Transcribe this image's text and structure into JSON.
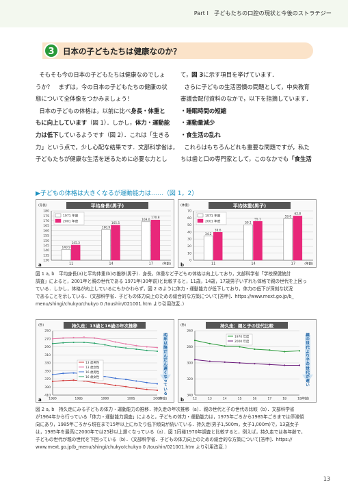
{
  "header": {
    "running_title": "Part Ⅰ　子どもたちの口腔の現状と今後のストラテジー"
  },
  "section": {
    "number": "3",
    "title": "日本の子どもたちは健康なのか？"
  },
  "body_left": {
    "lines": [
      [
        "そもそも今の日本の子どもたちは健康なのでしょ",
        "",
        ""
      ],
      [
        "うか？　まずは，今の日本の子どもたちの健康の状",
        "",
        ""
      ],
      [
        "態について全体像をつかみましょう！",
        "",
        ""
      ],
      [
        "日本の子どもの体格は，以前に比べ",
        "身長・体重と",
        ""
      ],
      [
        "",
        "もに向上しています",
        "（図 1）．しかし，"
      ],
      [
        "",
        "力は低下",
        "しているようです（図 2）．これは「生きる"
      ],
      [
        "力」という点で，少し心配な結果です．文部科学省は，",
        "",
        ""
      ],
      [
        "子どもたちが健康な生活を送るために必要な力とし",
        "",
        ""
      ]
    ],
    "bold_inline": "体力・運動能"
  },
  "body_right": {
    "line1a": "て，",
    "line1b": "図 3",
    "line1c": "に示す項目を挙げています．",
    "line2": "さらに子どもの生活習慣の問題として，中央教育",
    "line3": "審議会配付資料のなかで，以下を指摘しています．",
    "bullets": [
      "・睡眠時間の短縮",
      "・運動量減少",
      "・食生活の乱れ"
    ],
    "line7": "これらはもちろんどれも重要な問題ですが，私た",
    "line8a": "ちは歯と口の専門家として，このなかでも",
    "line8b": "「食生活"
  },
  "fig1": {
    "heading": "▶子どもの体格は大きくなるが運動能力は……（図 1，2）",
    "caption_lines": [
      "図 1 a, b　平均身長(a)と平均体重(b)の推移(男子)．身長，体重など子どもの体格は向上しており，文部科学省「学校保健統計",
      "調査」によると，2001年と親の世代である 1971年(30年前)と比較すると，11歳，14歳，17歳男子いずれも体格で親の世代を上回っ",
      "ている．しかし，体格が向上しているにもかかわらず，図 2 のように体力・運動能力が低下しており，体力の低下が深刻な状況",
      "であることを示している．（文部科学省．子どもの体力向上のための総合的な方策について[答申]．https://www.mext.go.jp/b_",
      "menu/shingi/chukyo/chukyo 0 /toushin/021001.htm より引用改変．）"
    ]
  },
  "fig2": {
    "caption_lines": [
      "図 2 a, b　持久走にみる子どもの体力・運動能力の推移．持久走の年次推移（a）．親の世代と子の世代の比較（b）．文部科学省",
      "が1964年から行っている「体力・運動能力調査」によると，子どもの体力・運動能力は，1975年ごろから1985年ごろまでは停滞傾",
      "向にあり，1985年ごろから現在まで15年以上にわたり低下傾向が続いている．持久走(男子1,500m，女子1,000m)で，13歳女子",
      "は，1985年を最高に2000年では25秒以上遅くなっている（a）．図 1同様1970年調査と比較すると，例えば，持久走では各年齢で，",
      "子どもの世代が親の世代を下回っている（b）．（文部科学省．子どもの体力向上のための総合的な方策について[答申]．https://",
      "www.mext.go.jp/b_menu/shingi/chukyo/chukyo 0 /toushin/021001.htm より引用改変．）"
    ]
  },
  "page_number": "13",
  "colors": {
    "bar_1971": "#ffffff",
    "bar_2001": "#e8277a",
    "accent_green": "#2a9a3a",
    "title_bar": "#555555",
    "line_1970": "#2a9a3a",
    "line_2000": "#6a1a7a"
  },
  "chart_data": [
    {
      "panel": "a",
      "type": "bar",
      "title": "平均身長(男子)",
      "ylabel": "(身長)",
      "xlabel": "(年齢)",
      "categories": [
        "11",
        "14",
        "17"
      ],
      "series": [
        {
          "name": "1971 年度",
          "values": [
            140.9,
            160.9,
            169.0
          ]
        },
        {
          "name": "2001 年度",
          "values": [
            145.3,
            165.5,
            170.8
          ]
        }
      ],
      "data_labels": [
        [
          "140.9",
          "160.9",
          "169.0"
        ],
        [
          "145.3",
          "165.5",
          "170.8"
        ]
      ],
      "ylim": [
        130,
        180
      ],
      "yticks": [
        "130",
        "135",
        "140",
        "145",
        "150",
        "155",
        "160",
        "165",
        "170",
        "175",
        "180"
      ]
    },
    {
      "panel": "b",
      "type": "bar",
      "title": "平均体重(男子)",
      "ylabel": "(体重)",
      "xlabel": "(年齢)",
      "categories": [
        "11",
        "14",
        "17"
      ],
      "series": [
        {
          "name": "1971 年度",
          "values": [
            34.2,
            50.1,
            59.0
          ]
        },
        {
          "name": "2001 年度",
          "values": [
            39.6,
            55.1,
            62.8
          ]
        }
      ],
      "data_labels": [
        [
          "34.2",
          "50.1",
          "59.0"
        ],
        [
          "39.6",
          "55.1",
          "62.8"
        ]
      ],
      "ylim": [
        0,
        70
      ],
      "yticks": [
        "0",
        "10",
        "20",
        "30",
        "40",
        "50",
        "60",
        "70"
      ]
    },
    {
      "panel": "a",
      "type": "line",
      "title": "持久走：13歳と16歳の年次推移",
      "ylabel": "(秒)",
      "xlabel": "(年度)",
      "x": [
        1980,
        1982,
        1984,
        1986,
        1988,
        1990,
        1992,
        1994,
        1996,
        1998,
        2000
      ],
      "xticks": [
        "1980",
        "1985",
        "1990",
        "1995",
        "2000"
      ],
      "yticks": [
        "250",
        "270",
        "290",
        "310",
        "330",
        "350",
        "370",
        "390",
        "410"
      ],
      "ylim": [
        250,
        410
      ],
      "y_inverted": true,
      "series": [
        {
          "name": "13 歳男性",
          "values": [
            376,
            374,
            373,
            375,
            379,
            382,
            386,
            389,
            393,
            396,
            398
          ]
        },
        {
          "name": "13 歳女性",
          "values": [
            270,
            268,
            267,
            266,
            268,
            272,
            278,
            283,
            287,
            290,
            292
          ]
        },
        {
          "name": "16 歳男性",
          "values": [
            359,
            356,
            355,
            357,
            361,
            364,
            368,
            371,
            375,
            379,
            382
          ]
        },
        {
          "name": "16 歳女性",
          "values": [
            282,
            280,
            279,
            279,
            281,
            285,
            290,
            293,
            296,
            299,
            301
          ]
        }
      ],
      "annotation": "明年以降だんだん遅くなっている"
    },
    {
      "panel": "b",
      "type": "line",
      "title": "持久走：親と子の世代比較",
      "ylabel": "(秒)",
      "xlabel": "(年齢)",
      "x": [
        12,
        13,
        14,
        15,
        16,
        17,
        18,
        19
      ],
      "xticks": [
        "12",
        "13",
        "14",
        "15",
        "16",
        "17",
        "18",
        "19"
      ],
      "yticks": [
        "260",
        "280",
        "300",
        "320",
        "340"
      ],
      "ylim": [
        260,
        340
      ],
      "y_inverted": true,
      "series": [
        {
          "name": "1970 年度",
          "values": [
            272,
            276,
            279,
            280,
            283,
            284,
            286,
            285
          ]
        },
        {
          "name": "2000 年度",
          "values": [
            296,
            298,
            299,
            300,
            301,
            302,
            303,
            303
          ]
        }
      ],
      "annotation": "親の世代より子の世代が遅い"
    }
  ]
}
